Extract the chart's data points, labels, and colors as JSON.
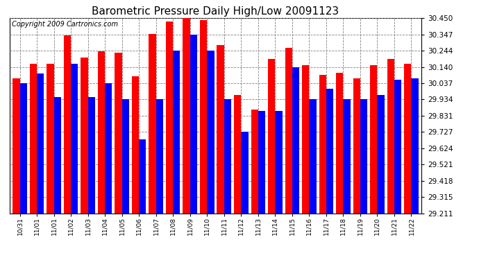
{
  "title": "Barometric Pressure Daily High/Low 20091123",
  "copyright": "Copyright 2009 Cartronics.com",
  "dates": [
    "10/31",
    "11/01",
    "11/01",
    "11/02",
    "11/03",
    "11/04",
    "11/05",
    "11/06",
    "11/07",
    "11/08",
    "11/09",
    "11/10",
    "11/11",
    "11/12",
    "11/13",
    "11/14",
    "11/15",
    "11/16",
    "11/17",
    "11/18",
    "11/19",
    "11/20",
    "11/21",
    "11/22"
  ],
  "high": [
    30.07,
    30.16,
    30.16,
    30.34,
    30.2,
    30.24,
    30.23,
    30.08,
    30.35,
    30.43,
    30.45,
    30.44,
    30.28,
    29.96,
    29.87,
    30.19,
    30.26,
    30.15,
    30.09,
    30.105,
    30.07,
    30.15,
    30.19,
    30.16
  ],
  "low": [
    30.037,
    30.1,
    29.95,
    30.16,
    29.95,
    30.037,
    29.934,
    29.68,
    29.934,
    30.244,
    30.347,
    30.244,
    29.934,
    29.727,
    29.86,
    29.86,
    30.14,
    29.934,
    30.0,
    29.934,
    29.934,
    29.96,
    30.06,
    30.07
  ],
  "ylim_min": 29.211,
  "ylim_max": 30.45,
  "yticks": [
    29.211,
    29.315,
    29.418,
    29.521,
    29.624,
    29.727,
    29.831,
    29.934,
    30.037,
    30.14,
    30.244,
    30.347,
    30.45
  ],
  "bar_color_high": "#ff0000",
  "bar_color_low": "#0000ff",
  "bg_color": "#ffffff",
  "plot_bg_color": "#ffffff",
  "grid_color": "#808080",
  "title_fontsize": 11,
  "copyright_fontsize": 7
}
